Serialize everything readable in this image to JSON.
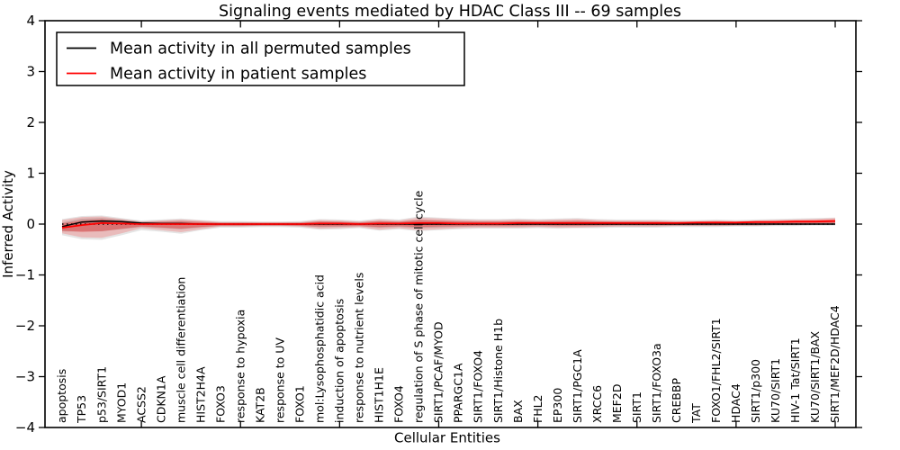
{
  "chart_data": {
    "type": "line",
    "title": "Signaling events mediated by HDAC Class III -- 69 samples",
    "xlabel": "Cellular Entities",
    "ylabel": "Inferred Activity",
    "ylim": [
      -4,
      4
    ],
    "yticks": [
      -4,
      -3,
      -2,
      -1,
      0,
      1,
      2,
      3,
      4
    ],
    "ytick_labels": [
      "−4",
      "−3",
      "−2",
      "−1",
      "0",
      "1",
      "2",
      "3",
      "4"
    ],
    "xtick_every": 5,
    "grid": false,
    "legend": {
      "position": "upper-left",
      "entries": [
        {
          "label": "Mean activity in all permuted samples",
          "color": "#000000"
        },
        {
          "label": "Mean activity in patient samples",
          "color": "#ff0000"
        }
      ]
    },
    "categories": [
      "apoptosis",
      "TP53",
      "p53/SIRT1",
      "MYOD1",
      "ACSS2",
      "CDKN1A",
      "muscle cell differentiation",
      "HIST2H4A",
      "FOXO3",
      "response to hypoxia",
      "KAT2B",
      "response to UV",
      "FOXO1",
      "mol:Lysophosphatidic acid",
      "induction of apoptosis",
      "response to nutrient levels",
      "HIST1H1E",
      "FOXO4",
      "regulation of S phase of mitotic cell cycle",
      "SIRT1/PCAF/MYOD",
      "PPARGC1A",
      "SIRT1/FOXO4",
      "SIRT1/Histone H1b",
      "BAX",
      "FHL2",
      "EP300",
      "SIRT1/PGC1A",
      "XRCC6",
      "MEF2D",
      "SIRT1",
      "SIRT1/FOXO3a",
      "CREBBP",
      "TAT",
      "FOXO1/FHL2/SIRT1",
      "HDAC4",
      "SIRT1/p300",
      "KU70/SIRT1",
      "HIV-1 Tat/SIRT1",
      "KU70/SIRT1/BAX",
      "SIRT1/MEF2D/HDAC4"
    ],
    "series": [
      {
        "name": "Mean activity in all permuted samples",
        "color": "#000000",
        "style": "solid",
        "values": [
          -0.05,
          0.04,
          0.06,
          0.05,
          0.02,
          0.01,
          0.01,
          0,
          0,
          0,
          0,
          0,
          0,
          0,
          0,
          0,
          0,
          0,
          0,
          0,
          0,
          0,
          0,
          0,
          0,
          0,
          0,
          0,
          0,
          0,
          0,
          0,
          0,
          0,
          0,
          0,
          0,
          0,
          0,
          0
        ]
      },
      {
        "name": "Mean activity in patient samples",
        "color": "#ff0000",
        "style": "solid",
        "values": [
          -0.07,
          -0.02,
          0.02,
          0.01,
          0,
          0,
          0,
          0,
          0,
          0,
          0,
          0,
          0,
          0.01,
          0.01,
          0,
          0.01,
          0.01,
          0.02,
          0.02,
          0.01,
          0.01,
          0.01,
          0.02,
          0.02,
          0.02,
          0.02,
          0.02,
          0.02,
          0.02,
          0.02,
          0.02,
          0.03,
          0.03,
          0.03,
          0.04,
          0.04,
          0.05,
          0.05,
          0.06
        ]
      }
    ],
    "bands": [
      {
        "name": "permuted-samples-std-band",
        "color": "#000000",
        "opacity": 0.1,
        "upper": [
          0.1,
          0.16,
          0.17,
          0.12,
          0.07,
          0.09,
          0.11,
          0.08,
          0.06,
          0.06,
          0.05,
          0.05,
          0.06,
          0.1,
          0.09,
          0.07,
          0.11,
          0.09,
          0.15,
          0.13,
          0.11,
          0.1,
          0.1,
          0.11,
          0.1,
          0.11,
          0.12,
          0.1,
          0.09,
          0.09,
          0.09,
          0.08,
          0.08,
          0.09,
          0.08,
          0.09,
          0.1,
          0.11,
          0.12,
          0.13
        ],
        "lower": [
          -0.22,
          -0.3,
          -0.31,
          -0.22,
          -0.12,
          -0.15,
          -0.19,
          -0.12,
          -0.07,
          -0.07,
          -0.06,
          -0.06,
          -0.07,
          -0.11,
          -0.1,
          -0.08,
          -0.13,
          -0.1,
          -0.14,
          -0.12,
          -0.1,
          -0.09,
          -0.09,
          -0.09,
          -0.08,
          -0.09,
          -0.08,
          -0.08,
          -0.07,
          -0.07,
          -0.07,
          -0.06,
          -0.06,
          -0.06,
          -0.05,
          -0.05,
          -0.04,
          -0.04,
          -0.03,
          -0.03
        ]
      },
      {
        "name": "patient-samples-std-band",
        "color": "#ff0000",
        "opacity": 0.18,
        "upper": [
          0.08,
          0.14,
          0.15,
          0.1,
          0.05,
          0.07,
          0.09,
          0.07,
          0.04,
          0.04,
          0.04,
          0.04,
          0.04,
          0.08,
          0.07,
          0.05,
          0.09,
          0.07,
          0.13,
          0.11,
          0.09,
          0.08,
          0.08,
          0.09,
          0.08,
          0.09,
          0.1,
          0.08,
          0.07,
          0.07,
          0.07,
          0.06,
          0.06,
          0.07,
          0.06,
          0.07,
          0.08,
          0.09,
          0.1,
          0.12
        ],
        "lower": [
          -0.18,
          -0.26,
          -0.27,
          -0.18,
          -0.08,
          -0.12,
          -0.16,
          -0.1,
          -0.05,
          -0.05,
          -0.04,
          -0.04,
          -0.05,
          -0.09,
          -0.08,
          -0.06,
          -0.11,
          -0.08,
          -0.12,
          -0.1,
          -0.08,
          -0.07,
          -0.07,
          -0.07,
          -0.06,
          -0.07,
          -0.07,
          -0.06,
          -0.05,
          -0.05,
          -0.05,
          -0.04,
          -0.04,
          -0.04,
          -0.03,
          -0.03,
          -0.02,
          -0.02,
          -0.01,
          -0.01
        ]
      }
    ],
    "zero_line": {
      "value": 0,
      "style": "dotted",
      "color": "#000000"
    }
  }
}
